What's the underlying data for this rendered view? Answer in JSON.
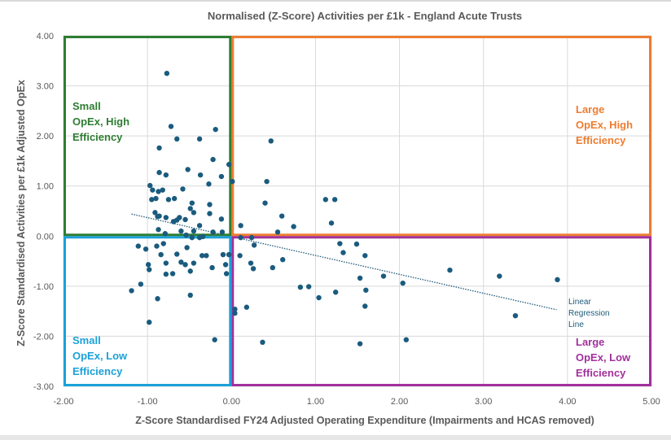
{
  "chart_data": {
    "type": "scatter",
    "title": "Normalised (Z-Score) Activities per £1k - England Acute Trusts",
    "xlabel": "Z-Score Standardised FY24 Adjusted Operating Expenditure (Impairments and HCAS removed)",
    "ylabel": "Z-Score Standardised Activities  per £1k Adjusted OpEx",
    "xlim": [
      -2,
      5
    ],
    "ylim": [
      -3,
      4
    ],
    "xticks": [
      "-2.00",
      "-1.00",
      "0.00",
      "1.00",
      "2.00",
      "3.00",
      "4.00",
      "5.00"
    ],
    "yticks": [
      "4.00",
      "3.00",
      "2.00",
      "1.00",
      "0.00",
      "-1.00",
      "-2.00",
      "-3.00"
    ],
    "grid": true,
    "point_color": "#1a5b7e",
    "points": [
      [
        -0.77,
        3.25
      ],
      [
        -0.19,
        2.13
      ],
      [
        -0.72,
        2.19
      ],
      [
        -0.86,
        1.76
      ],
      [
        -0.65,
        1.94
      ],
      [
        -0.38,
        1.94
      ],
      [
        0.47,
        1.9
      ],
      [
        -0.86,
        1.27
      ],
      [
        -0.78,
        1.22
      ],
      [
        -0.52,
        1.33
      ],
      [
        -0.37,
        1.22
      ],
      [
        -0.12,
        1.19
      ],
      [
        -0.03,
        1.43
      ],
      [
        -0.22,
        1.53
      ],
      [
        -0.97,
        1.01
      ],
      [
        -0.94,
        0.92
      ],
      [
        -0.82,
        0.92
      ],
      [
        -0.58,
        0.94
      ],
      [
        -0.75,
        0.73
      ],
      [
        -0.87,
        0.89
      ],
      [
        -0.27,
        1.04
      ],
      [
        -0.95,
        0.73
      ],
      [
        -0.9,
        0.75
      ],
      [
        -0.68,
        0.75
      ],
      [
        -0.47,
        0.66
      ],
      [
        -0.26,
        0.63
      ],
      [
        0.01,
        1.09
      ],
      [
        0.42,
        1.09
      ],
      [
        -0.91,
        0.47
      ],
      [
        -0.78,
        0.37
      ],
      [
        -0.69,
        0.29
      ],
      [
        -0.55,
        0.33
      ],
      [
        -0.49,
        0.55
      ],
      [
        -0.45,
        0.47
      ],
      [
        -0.26,
        0.45
      ],
      [
        0.4,
        0.66
      ],
      [
        -0.88,
        0.39
      ],
      [
        -0.86,
        0.4
      ],
      [
        -0.69,
        0.29
      ],
      [
        -0.65,
        0.32
      ],
      [
        -0.62,
        0.37
      ],
      [
        -0.38,
        0.21
      ],
      [
        -0.12,
        0.34
      ],
      [
        -0.87,
        0.13
      ],
      [
        -0.79,
        0.05
      ],
      [
        -0.6,
        0.1
      ],
      [
        -0.47,
        -0.03
      ],
      [
        -0.34,
        -0.01
      ],
      [
        -0.22,
        0.08
      ],
      [
        -0.11,
        0.08
      ],
      [
        -0.38,
        -0.03
      ],
      [
        -0.45,
        0.1
      ],
      [
        -0.54,
        0.02
      ],
      [
        0.11,
        0.21
      ],
      [
        0.6,
        0.4
      ],
      [
        0.55,
        0.08
      ],
      [
        0.74,
        0.19
      ],
      [
        1.12,
        0.73
      ],
      [
        1.23,
        0.73
      ],
      [
        1.19,
        0.26
      ],
      [
        0.11,
        -0.03
      ],
      [
        0.24,
        -0.03
      ],
      [
        0.27,
        -0.18
      ],
      [
        -0.03,
        -0.37
      ],
      [
        -1.11,
        -0.2
      ],
      [
        -1.02,
        -0.26
      ],
      [
        -0.89,
        -0.2
      ],
      [
        -0.81,
        -0.15
      ],
      [
        -0.53,
        -0.23
      ],
      [
        -0.84,
        -0.37
      ],
      [
        -0.65,
        -0.36
      ],
      [
        -0.35,
        -0.39
      ],
      [
        -0.3,
        -0.39
      ],
      [
        0.1,
        -0.39
      ],
      [
        0.23,
        -0.54
      ],
      [
        0.26,
        -0.65
      ],
      [
        0.49,
        -0.63
      ],
      [
        0.61,
        -0.47
      ],
      [
        1.29,
        -0.15
      ],
      [
        1.49,
        -0.16
      ],
      [
        1.33,
        -0.33
      ],
      [
        1.59,
        -0.39
      ],
      [
        -0.99,
        -0.57
      ],
      [
        -0.78,
        -0.54
      ],
      [
        -0.6,
        -0.52
      ],
      [
        -0.55,
        -0.57
      ],
      [
        -0.45,
        -0.54
      ],
      [
        -0.07,
        -0.57
      ],
      [
        -0.1,
        -0.37
      ],
      [
        -0.98,
        -0.67
      ],
      [
        -0.78,
        -0.76
      ],
      [
        -0.7,
        -0.75
      ],
      [
        -0.49,
        -0.7
      ],
      [
        -0.23,
        -0.63
      ],
      [
        -0.06,
        -0.75
      ],
      [
        -1.08,
        -0.96
      ],
      [
        -1.19,
        -1.09
      ],
      [
        -0.88,
        -1.25
      ],
      [
        -0.49,
        -1.18
      ],
      [
        1.53,
        -0.84
      ],
      [
        1.81,
        -0.8
      ],
      [
        2.04,
        -0.94
      ],
      [
        2.6,
        -0.68
      ],
      [
        3.19,
        -0.8
      ],
      [
        3.88,
        -0.87
      ],
      [
        0.82,
        -1.02
      ],
      [
        0.92,
        -1.01
      ],
      [
        1.04,
        -1.23
      ],
      [
        1.24,
        -1.12
      ],
      [
        1.6,
        -1.08
      ],
      [
        0.18,
        -1.42
      ],
      [
        0.04,
        -1.46
      ],
      [
        0.04,
        -1.54
      ],
      [
        1.59,
        -1.4
      ],
      [
        3.38,
        -1.59
      ],
      [
        -0.98,
        -1.72
      ],
      [
        -0.2,
        -2.07
      ],
      [
        0.37,
        -2.12
      ],
      [
        1.53,
        -2.15
      ],
      [
        2.08,
        -2.07
      ]
    ],
    "regression": {
      "label": "Linear Regression Line",
      "x": [
        -1.19,
        3.87
      ],
      "y": [
        0.44,
        -1.47
      ],
      "color": "#1f5b7a"
    },
    "quadrants": [
      {
        "label_lines": [
          "Small",
          "OpEx, High",
          "Efficiency"
        ],
        "color": "#2e7d32",
        "x": [
          -2,
          0
        ],
        "y": [
          0,
          4
        ]
      },
      {
        "label_lines": [
          "Large",
          "OpEx, High",
          "Efficiency"
        ],
        "color": "#ed7d31",
        "x": [
          0,
          5
        ],
        "y": [
          0,
          4
        ]
      },
      {
        "label_lines": [
          "Small",
          "OpEx, Low",
          "Efficiency"
        ],
        "color": "#1ba1d8",
        "x": [
          -2,
          0
        ],
        "y": [
          -3,
          0
        ]
      },
      {
        "label_lines": [
          "Large",
          "OpEx, Low",
          "Efficiency"
        ],
        "color": "#a2309c",
        "x": [
          0,
          5
        ],
        "y": [
          -3,
          0
        ]
      }
    ]
  }
}
